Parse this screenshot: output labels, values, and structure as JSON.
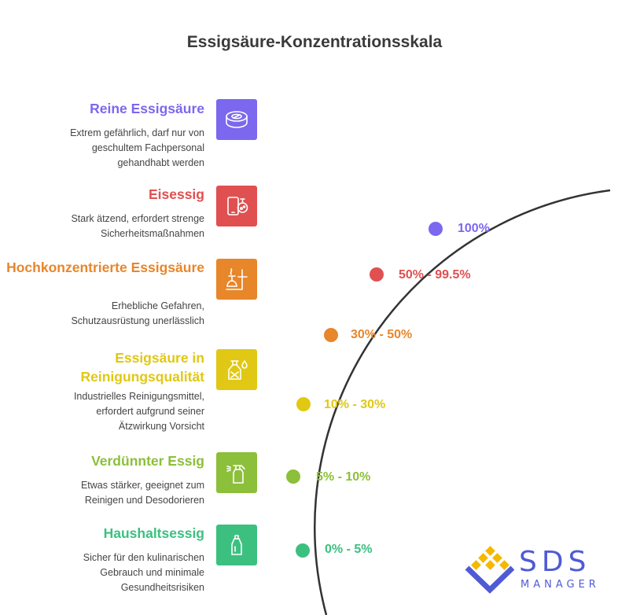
{
  "title": "Essigsäure-Konzentrationsskala",
  "levels": [
    {
      "heading": "Reine Essigsäure",
      "description": "Extrem gefährlich, darf nur von\ngeschultem Fachpersonal\ngehandhabt werden",
      "range": "100%",
      "color": "#7b68ee",
      "icon": "tape-roll-icon"
    },
    {
      "heading": "Eisessig",
      "description": "Stark ätzend, erfordert strenge\nSicherheitsmaßnahmen",
      "range": "50% - 99.5%",
      "color": "#e05050",
      "icon": "phone-flask-icon"
    },
    {
      "heading": "Hochkonzentrierte\nEssigsäure",
      "description": "Erhebliche Gefahren,\nSchutzausrüstung unerlässlich",
      "range": "30% - 50%",
      "color": "#e8862a",
      "icon": "lab-burner-icon"
    },
    {
      "heading": "Essigsäure in\nReinigungsqualität",
      "description": "Industrielles Reinigungsmittel,\nerfordert aufgrund seiner\nÄtzwirkung Vorsicht",
      "range": "10% - 30%",
      "color": "#e0c814",
      "icon": "hazard-bottle-icon"
    },
    {
      "heading": "Verdünnter Essig",
      "description": "Etwas stärker, geeignet zum\nReinigen und Desodorieren",
      "range": "5% - 10%",
      "color": "#8cbf3a",
      "icon": "spray-bottle-icon"
    },
    {
      "heading": "Haushaltsessig",
      "description": "Sicher für den kulinarischen\nGebrauch und minimale\nGesundheitsrisiken",
      "range": "0% - 5%",
      "color": "#3cc080",
      "icon": "detergent-bottle-icon"
    }
  ],
  "logo": {
    "name": "SDS",
    "subtitle": "MANAGER",
    "colors": {
      "primary": "#4f5bd5",
      "accent": "#f5b800"
    }
  }
}
